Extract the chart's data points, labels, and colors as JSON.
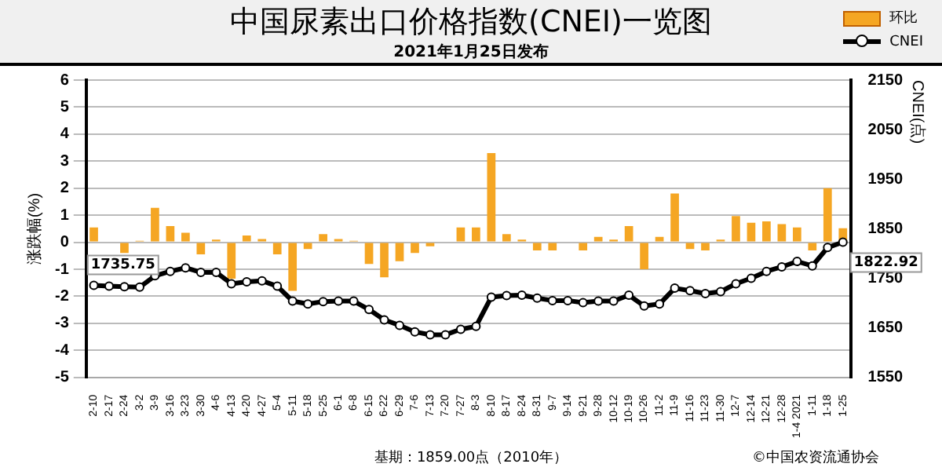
{
  "chart_data": {
    "type": "bar",
    "title": "中国尿素出口价格指数(CNEI)一览图",
    "subtitle": "2021年1月25日发布",
    "ylabel": "涨跌幅(%)",
    "y2label": "CNEI(点)",
    "categories": [
      "2-10",
      "2-17",
      "2-24",
      "3-2",
      "3-9",
      "3-16",
      "3-23",
      "3-30",
      "4-6",
      "4-13",
      "4-20",
      "4-27",
      "5-4",
      "5-11",
      "5-18",
      "5-25",
      "6-1",
      "6-8",
      "6-15",
      "6-22",
      "6-29",
      "7-6",
      "7-13",
      "7-20",
      "7-27",
      "8-3",
      "8-10",
      "8-17",
      "8-24",
      "8-31",
      "9-7",
      "9-14",
      "9-21",
      "9-28",
      "10-12",
      "10-19",
      "10-26",
      "11-2",
      "11-9",
      "11-16",
      "11-23",
      "11-30",
      "12-7",
      "12-14",
      "12-21",
      "12-28",
      "1-4 2021",
      "1-11",
      "1-18",
      "1-25"
    ],
    "series": [
      {
        "name": "环比",
        "color": "#f5a623",
        "values": [
          0.55,
          null,
          -0.4,
          0.05,
          1.27,
          0.6,
          0.35,
          -0.45,
          0.1,
          -1.35,
          0.25,
          0.12,
          -0.45,
          -1.8,
          -0.25,
          0.3,
          0.12,
          0.05,
          -0.8,
          -1.3,
          -0.7,
          -0.4,
          -0.15,
          null,
          0.55,
          0.55,
          3.3,
          0.3,
          0.1,
          -0.3,
          -0.3,
          null,
          -0.3,
          0.2,
          0.1,
          0.6,
          -1.0,
          0.2,
          1.8,
          -0.25,
          -0.3,
          0.1,
          0.97,
          0.72,
          0.77,
          0.67,
          0.55,
          -0.3,
          2.0,
          0.52
        ]
      },
      {
        "name": "CNEI",
        "type": "line",
        "axis": "y2",
        "color": "#000000",
        "marker": "circle",
        "values": [
          1735.75,
          1734,
          1733,
          1732,
          1755,
          1764,
          1771,
          1762,
          1762,
          1739,
          1743,
          1745,
          1734,
          1704,
          1698,
          1703,
          1704,
          1704,
          1687,
          1666,
          1655,
          1642,
          1636,
          1636,
          1647,
          1653,
          1712,
          1715,
          1716,
          1710,
          1705,
          1705,
          1701,
          1704,
          1704,
          1716,
          1694,
          1698,
          1730,
          1725,
          1719,
          1723,
          1739,
          1750,
          1764,
          1773,
          1784,
          1775,
          1812,
          1822.92
        ],
        "value_labels": [
          "1735.75",
          null,
          null,
          null,
          null,
          null,
          null,
          null,
          null,
          null,
          null,
          null,
          null,
          null,
          null,
          null,
          null,
          null,
          null,
          null,
          null,
          null,
          null,
          null,
          null,
          null,
          null,
          null,
          null,
          null,
          null,
          null,
          null,
          null,
          null,
          null,
          null,
          null,
          null,
          null,
          null,
          null,
          null,
          null,
          null,
          null,
          null,
          null,
          null,
          "1822.92"
        ]
      }
    ],
    "ylim": [
      -5,
      6
    ],
    "yticks": [
      -5,
      -4,
      -3,
      -2,
      -1,
      0,
      1,
      2,
      3,
      4,
      5,
      6
    ],
    "y2lim": [
      1550,
      2150
    ],
    "y2ticks": [
      1550,
      1650,
      1750,
      1850,
      1950,
      2050,
      2150
    ],
    "grid": "y",
    "legend": "top right",
    "annotations": [
      "基期：1859.00点（2010年）",
      "©中国农资流通协会"
    ]
  }
}
